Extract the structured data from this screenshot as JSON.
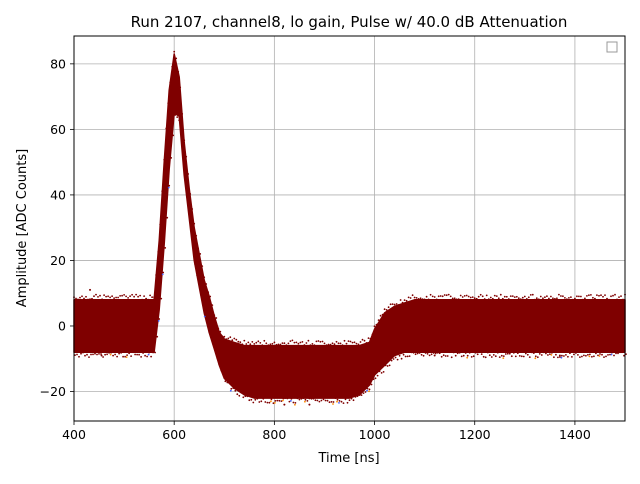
{
  "chart_data": {
    "type": "scatter",
    "title": "Run 2107, channel8, lo gain, Pulse w/ 40.0 dB Attenuation",
    "xlabel": "Time [ns]",
    "ylabel": "Amplitude [ADC Counts]",
    "xlim": [
      400,
      1500
    ],
    "ylim": [
      -29,
      88.5
    ],
    "xticks": [
      400,
      600,
      800,
      1000,
      1200,
      1400
    ],
    "yticks": [
      -20,
      0,
      20,
      40,
      60,
      80
    ],
    "grid": true,
    "legend": {
      "position": "top-right",
      "entries": []
    },
    "colors": {
      "band": "#7f0000",
      "outlier_orange": "#ff8c00",
      "outlier_blue": "#4060ff"
    },
    "envelope": {
      "description_series": "upper",
      "x": [
        400,
        560,
        570,
        580,
        590,
        600,
        610,
        620,
        630,
        640,
        650,
        660,
        670,
        680,
        690,
        700,
        720,
        740,
        760,
        780,
        800,
        850,
        900,
        950,
        970,
        990,
        1000,
        1020,
        1040,
        1060,
        1080,
        1100,
        1200,
        1300,
        1400,
        1500
      ],
      "upper": [
        8,
        8,
        26,
        50,
        72,
        83,
        76,
        56,
        42,
        30,
        22,
        14,
        9,
        3,
        -2,
        -4,
        -5,
        -6,
        -6,
        -6,
        -6,
        -6,
        -6,
        -6,
        -6,
        -5,
        -1,
        4,
        6,
        7,
        8,
        8,
        8,
        8,
        8,
        8
      ],
      "lower": [
        -8,
        -8,
        5,
        25,
        48,
        65,
        64,
        46,
        33,
        20,
        12,
        4,
        -2,
        -7,
        -12,
        -16,
        -19,
        -21,
        -22,
        -22,
        -22,
        -22,
        -22,
        -22,
        -21,
        -18,
        -15,
        -12,
        -9,
        -8,
        -8,
        -8,
        -8,
        -8,
        -8,
        -8
      ]
    },
    "outliers": [
      {
        "x": 432,
        "y": 11
      },
      {
        "x": 820,
        "y": -24
      },
      {
        "x": 870,
        "y": -24
      },
      {
        "x": 1120,
        "y": -9
      },
      {
        "x": 1370,
        "y": -9
      },
      {
        "x": 455,
        "y": -9
      }
    ]
  }
}
